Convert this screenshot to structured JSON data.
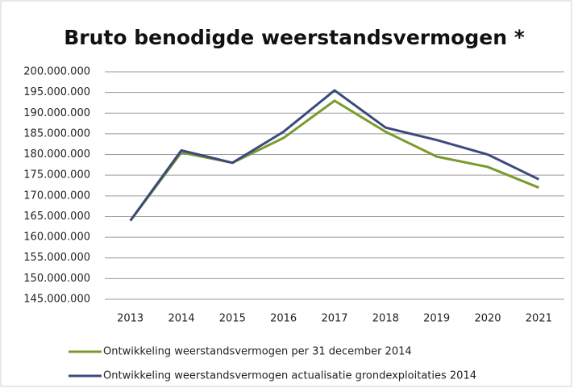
{
  "chart_data": {
    "type": "line",
    "title": "Bruto benodigde weerstandsvermogen *",
    "categories": [
      "2013",
      "2014",
      "2015",
      "2016",
      "2017",
      "2018",
      "2019",
      "2020",
      "2021"
    ],
    "series": [
      {
        "name": "Ontwikkeling weerstandsvermogen per 31 december 2014",
        "color": "#7b9a2c",
        "values": [
          164000000,
          180500000,
          178000000,
          184000000,
          193000000,
          185500000,
          179500000,
          177000000,
          172000000
        ]
      },
      {
        "name": "Ontwikkeling weerstandsvermogen actualisatie grondexploitaties 2014",
        "color": "#3b4a7c",
        "values": [
          164000000,
          181000000,
          178000000,
          185500000,
          195500000,
          186500000,
          183500000,
          180000000,
          174000000
        ]
      }
    ],
    "ylim": [
      145000000,
      200000000
    ],
    "yticks": [
      {
        "value": 145000000,
        "label": "145.000.000"
      },
      {
        "value": 150000000,
        "label": "150.000.000"
      },
      {
        "value": 155000000,
        "label": "155.000.000"
      },
      {
        "value": 160000000,
        "label": "160.000.000"
      },
      {
        "value": 165000000,
        "label": "165.000.000"
      },
      {
        "value": 170000000,
        "label": "170.000.000"
      },
      {
        "value": 175000000,
        "label": "175.000.000"
      },
      {
        "value": 180000000,
        "label": "180.000.000"
      },
      {
        "value": 185000000,
        "label": "185.000.000"
      },
      {
        "value": 190000000,
        "label": "190.000.000"
      },
      {
        "value": 195000000,
        "label": "195.000.000"
      },
      {
        "value": 200000000,
        "label": "200.000.000"
      }
    ],
    "grid": true
  }
}
